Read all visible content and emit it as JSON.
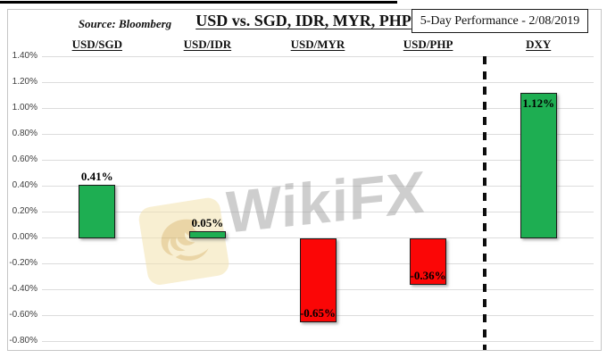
{
  "header": {
    "source": "Source: Bloomberg",
    "title": "USD vs. SGD, IDR, MYR, PHP",
    "performance_box": "5-Day Performance - 2/08/2019"
  },
  "watermark": {
    "text": "WikiFX",
    "logo": "wikifx-eagle-logo"
  },
  "colors": {
    "positive": "#1eae52",
    "negative": "#fb0606",
    "gridline": "#dcdcdc",
    "bar_border": "#1a1a1a",
    "separator": "#0d0d0d",
    "watermark_gold": "#f3e2af",
    "watermark_gold_dark": "#d9b45f"
  },
  "chart_data": {
    "type": "bar",
    "title": "USD vs. SGD, IDR, MYR, PHP",
    "categories": [
      "USD/SGD",
      "USD/IDR",
      "USD/MYR",
      "USD/PHP",
      "DXY"
    ],
    "values": [
      0.41,
      0.05,
      -0.65,
      -0.36,
      1.12
    ],
    "data_labels": [
      "0.41%",
      "0.05%",
      "-0.65%",
      "-0.36%",
      "1.12%"
    ],
    "label_positions": [
      "outside-end",
      "outside-end",
      "inside-end",
      "inside-end",
      "inside-end"
    ],
    "ylim": [
      -0.8,
      1.4
    ],
    "ytick_step": 0.2,
    "ytick_labels": [
      "1.40%",
      "1.20%",
      "1.00%",
      "0.80%",
      "0.60%",
      "0.40%",
      "0.20%",
      "0.00%",
      "-0.20%",
      "-0.40%",
      "-0.60%",
      "-0.80%"
    ],
    "grid": true,
    "legend": "none",
    "separator_after_index": 3,
    "separator_style": "dashed-vertical"
  }
}
